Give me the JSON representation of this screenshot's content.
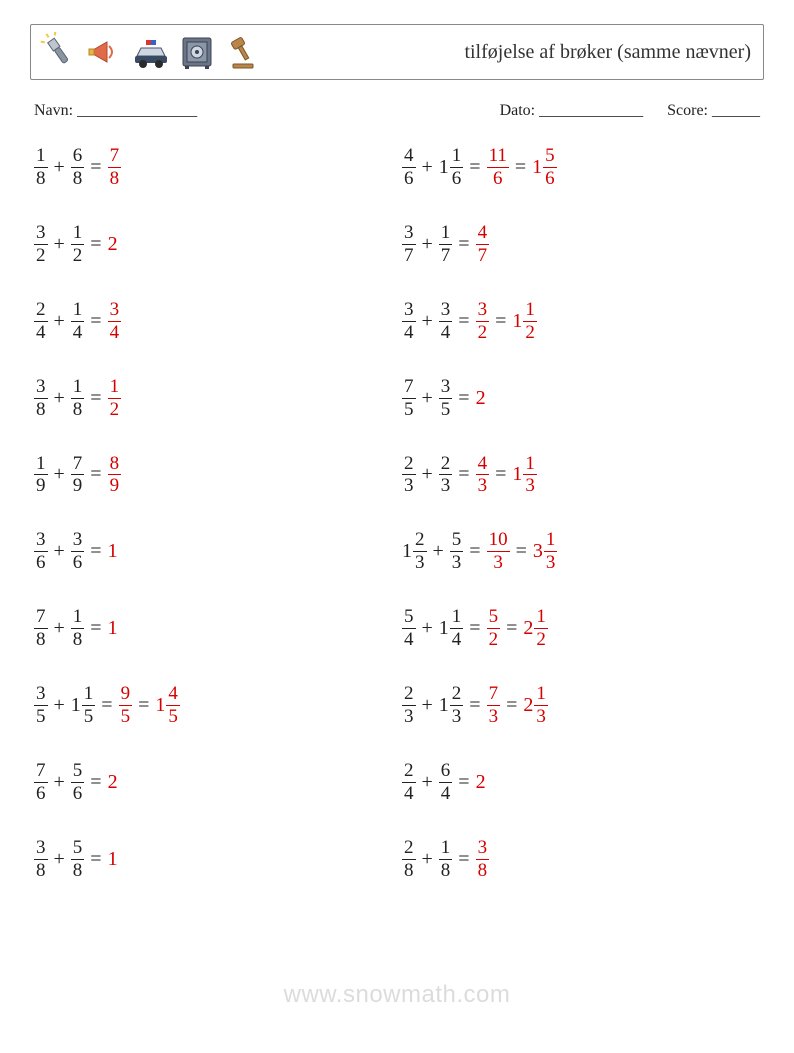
{
  "header": {
    "title": "tilføjelse af brøker (samme nævner)",
    "icons": [
      "flashlight-icon",
      "megaphone-icon",
      "police-car-icon",
      "safe-icon",
      "gavel-icon"
    ]
  },
  "meta": {
    "name_label": "Navn: _______________",
    "date_label": "Dato: _____________",
    "score_label": "Score: ______"
  },
  "style": {
    "answer_color": "#d60000",
    "text_color": "#222222",
    "font_size_pt": 15
  },
  "problems": {
    "left": [
      {
        "terms": [
          {
            "n": 1,
            "d": 8
          },
          {
            "n": 6,
            "d": 8
          }
        ],
        "answers": [
          {
            "n": 7,
            "d": 8
          }
        ]
      },
      {
        "terms": [
          {
            "n": 3,
            "d": 2
          },
          {
            "n": 1,
            "d": 2
          }
        ],
        "answers": [
          {
            "int": 2
          }
        ]
      },
      {
        "terms": [
          {
            "n": 2,
            "d": 4
          },
          {
            "n": 1,
            "d": 4
          }
        ],
        "answers": [
          {
            "n": 3,
            "d": 4
          }
        ]
      },
      {
        "terms": [
          {
            "n": 3,
            "d": 8
          },
          {
            "n": 1,
            "d": 8
          }
        ],
        "answers": [
          {
            "n": 1,
            "d": 2
          }
        ]
      },
      {
        "terms": [
          {
            "n": 1,
            "d": 9
          },
          {
            "n": 7,
            "d": 9
          }
        ],
        "answers": [
          {
            "n": 8,
            "d": 9
          }
        ]
      },
      {
        "terms": [
          {
            "n": 3,
            "d": 6
          },
          {
            "n": 3,
            "d": 6
          }
        ],
        "answers": [
          {
            "int": 1
          }
        ]
      },
      {
        "terms": [
          {
            "n": 7,
            "d": 8
          },
          {
            "n": 1,
            "d": 8
          }
        ],
        "answers": [
          {
            "int": 1
          }
        ]
      },
      {
        "terms": [
          {
            "n": 3,
            "d": 5
          },
          {
            "w": 1,
            "n": 1,
            "d": 5
          }
        ],
        "answers": [
          {
            "n": 9,
            "d": 5
          },
          {
            "w": 1,
            "n": 4,
            "d": 5
          }
        ]
      },
      {
        "terms": [
          {
            "n": 7,
            "d": 6
          },
          {
            "n": 5,
            "d": 6
          }
        ],
        "answers": [
          {
            "int": 2
          }
        ]
      },
      {
        "terms": [
          {
            "n": 3,
            "d": 8
          },
          {
            "n": 5,
            "d": 8
          }
        ],
        "answers": [
          {
            "int": 1
          }
        ]
      }
    ],
    "right": [
      {
        "terms": [
          {
            "n": 4,
            "d": 6
          },
          {
            "w": 1,
            "n": 1,
            "d": 6
          }
        ],
        "answers": [
          {
            "n": 11,
            "d": 6
          },
          {
            "w": 1,
            "n": 5,
            "d": 6
          }
        ]
      },
      {
        "terms": [
          {
            "n": 3,
            "d": 7
          },
          {
            "n": 1,
            "d": 7
          }
        ],
        "answers": [
          {
            "n": 4,
            "d": 7
          }
        ]
      },
      {
        "terms": [
          {
            "n": 3,
            "d": 4
          },
          {
            "n": 3,
            "d": 4
          }
        ],
        "answers": [
          {
            "n": 3,
            "d": 2
          },
          {
            "w": 1,
            "n": 1,
            "d": 2
          }
        ]
      },
      {
        "terms": [
          {
            "n": 7,
            "d": 5
          },
          {
            "n": 3,
            "d": 5
          }
        ],
        "answers": [
          {
            "int": 2
          }
        ]
      },
      {
        "terms": [
          {
            "n": 2,
            "d": 3
          },
          {
            "n": 2,
            "d": 3
          }
        ],
        "answers": [
          {
            "n": 4,
            "d": 3
          },
          {
            "w": 1,
            "n": 1,
            "d": 3
          }
        ]
      },
      {
        "terms": [
          {
            "w": 1,
            "n": 2,
            "d": 3
          },
          {
            "n": 5,
            "d": 3
          }
        ],
        "answers": [
          {
            "n": 10,
            "d": 3
          },
          {
            "w": 3,
            "n": 1,
            "d": 3
          }
        ]
      },
      {
        "terms": [
          {
            "n": 5,
            "d": 4
          },
          {
            "w": 1,
            "n": 1,
            "d": 4
          }
        ],
        "answers": [
          {
            "n": 5,
            "d": 2
          },
          {
            "w": 2,
            "n": 1,
            "d": 2
          }
        ]
      },
      {
        "terms": [
          {
            "n": 2,
            "d": 3
          },
          {
            "w": 1,
            "n": 2,
            "d": 3
          }
        ],
        "answers": [
          {
            "n": 7,
            "d": 3
          },
          {
            "w": 2,
            "n": 1,
            "d": 3
          }
        ]
      },
      {
        "terms": [
          {
            "n": 2,
            "d": 4
          },
          {
            "n": 6,
            "d": 4
          }
        ],
        "answers": [
          {
            "int": 2
          }
        ]
      },
      {
        "terms": [
          {
            "n": 2,
            "d": 8
          },
          {
            "n": 1,
            "d": 8
          }
        ],
        "answers": [
          {
            "n": 3,
            "d": 8
          }
        ]
      }
    ]
  },
  "watermark": "www.snowmath.com"
}
